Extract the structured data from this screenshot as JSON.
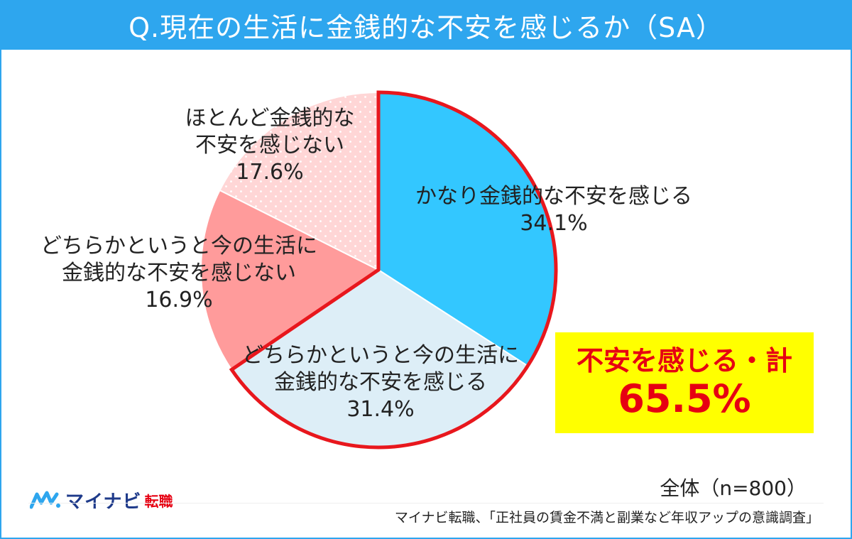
{
  "title": "Q.現在の生活に金銭的な不安を感じるか（SA）",
  "chart_data": {
    "type": "pie",
    "slices": [
      {
        "lines": [
          "かなり金銭的な不安を感じる",
          "34.1%"
        ],
        "value": 34.1,
        "color": "#33c7ff"
      },
      {
        "lines": [
          "どちらかというと今の生活に",
          "金銭的な不安を感じる",
          "31.4%"
        ],
        "value": 31.4,
        "color": "#ddeef7"
      },
      {
        "lines": [
          "どちらかというと今の生活に",
          "金銭的な不安を感じない",
          "16.9%"
        ],
        "value": 16.9,
        "color": "#ff9b9b"
      },
      {
        "lines": [
          "ほとんど金銭的な",
          "不安を感じない",
          "17.6%"
        ],
        "value": 17.6,
        "color": "#ffd6d6"
      }
    ],
    "highlight_outline_color": "#e8171d"
  },
  "callout": {
    "label": "不安を感じる・計",
    "value": "65.5%"
  },
  "sample": "全体（n=800）",
  "logo": {
    "brand": "マイナビ",
    "sub": "転職"
  },
  "source": "マイナビ転職、「正社員の賃金不満と副業など年収アップの意識調査」"
}
